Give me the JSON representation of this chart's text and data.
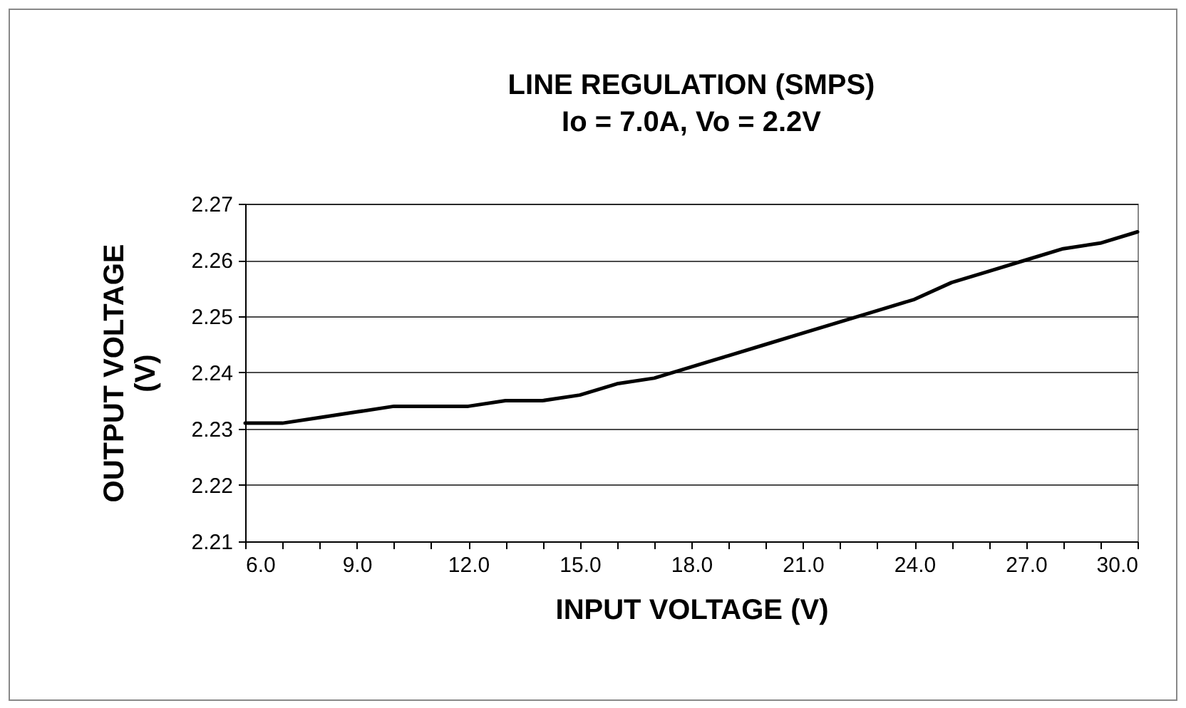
{
  "chart_data": {
    "type": "line",
    "title": "LINE REGULATION (SMPS)",
    "subtitle": "Io = 7.0A, Vo = 2.2V",
    "xlabel": "INPUT VOLTAGE (V)",
    "ylabel": "OUTPUT VOLTAGE (V)",
    "x": [
      6,
      7,
      8,
      9,
      10,
      11,
      12,
      13,
      14,
      15,
      16,
      17,
      18,
      19,
      20,
      21,
      22,
      23,
      24,
      25,
      26,
      27,
      28,
      29,
      30
    ],
    "series": [
      {
        "color": "#000000",
        "values": [
          2.231,
          2.231,
          2.232,
          2.233,
          2.234,
          2.234,
          2.234,
          2.235,
          2.235,
          2.236,
          2.238,
          2.239,
          2.241,
          2.243,
          2.245,
          2.247,
          2.249,
          2.251,
          2.253,
          2.256,
          2.258,
          2.26,
          2.262,
          2.263,
          2.265
        ]
      }
    ],
    "xlim": [
      6,
      30
    ],
    "xticks": [
      {
        "value": 6,
        "label": "6.0"
      },
      {
        "value": 7,
        "label": null
      },
      {
        "value": 8,
        "label": null
      },
      {
        "value": 9,
        "label": "9.0"
      },
      {
        "value": 10,
        "label": null
      },
      {
        "value": 11,
        "label": null
      },
      {
        "value": 12,
        "label": "12.0"
      },
      {
        "value": 13,
        "label": null
      },
      {
        "value": 14,
        "label": null
      },
      {
        "value": 15,
        "label": "15.0"
      },
      {
        "value": 16,
        "label": null
      },
      {
        "value": 17,
        "label": null
      },
      {
        "value": 18,
        "label": "18.0"
      },
      {
        "value": 19,
        "label": null
      },
      {
        "value": 20,
        "label": null
      },
      {
        "value": 21,
        "label": "21.0"
      },
      {
        "value": 22,
        "label": null
      },
      {
        "value": 23,
        "label": null
      },
      {
        "value": 24,
        "label": "24.0"
      },
      {
        "value": 25,
        "label": null
      },
      {
        "value": 26,
        "label": null
      },
      {
        "value": 27,
        "label": "27.0"
      },
      {
        "value": 28,
        "label": null
      },
      {
        "value": 29,
        "label": null
      },
      {
        "value": 30,
        "label": "30.0"
      }
    ],
    "ylim": [
      2.21,
      2.27
    ],
    "yticks": [
      2.21,
      2.22,
      2.23,
      2.24,
      2.25,
      2.26,
      2.27
    ],
    "grid": "y",
    "marker": "none",
    "line_style": "solid"
  }
}
